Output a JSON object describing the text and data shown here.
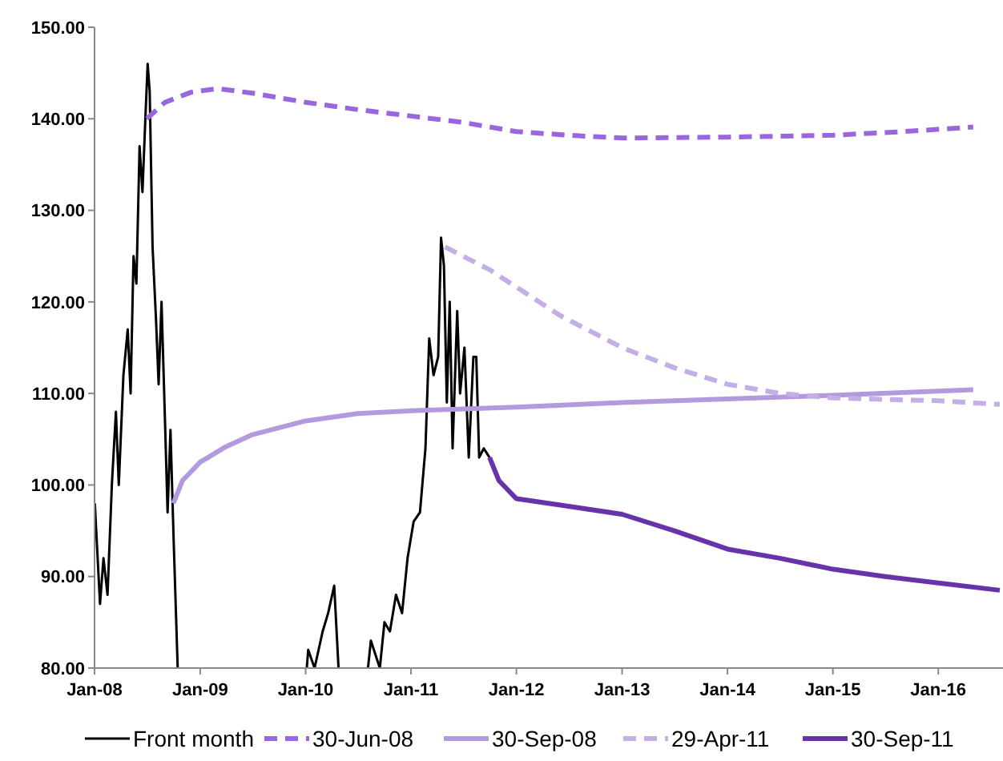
{
  "chart_data": {
    "type": "line",
    "xlim": [
      "2008-01-01",
      "2016-08-01"
    ],
    "ylim": [
      80,
      150
    ],
    "xticks": [
      {
        "value": "2008-01-01",
        "label": "Jan-08"
      },
      {
        "value": "2009-01-01",
        "label": "Jan-09"
      },
      {
        "value": "2010-01-01",
        "label": "Jan-10"
      },
      {
        "value": "2011-01-01",
        "label": "Jan-11"
      },
      {
        "value": "2012-01-01",
        "label": "Jan-12"
      },
      {
        "value": "2013-01-01",
        "label": "Jan-13"
      },
      {
        "value": "2014-01-01",
        "label": "Jan-14"
      },
      {
        "value": "2015-01-01",
        "label": "Jan-15"
      },
      {
        "value": "2016-01-01",
        "label": "Jan-16"
      }
    ],
    "yticks": [
      {
        "value": 80,
        "label": "80.00"
      },
      {
        "value": 90,
        "label": "90.00"
      },
      {
        "value": 100,
        "label": "100.00"
      },
      {
        "value": 110,
        "label": "110.00"
      },
      {
        "value": 120,
        "label": "120.00"
      },
      {
        "value": 130,
        "label": "130.00"
      },
      {
        "value": 140,
        "label": "140.00"
      },
      {
        "value": 150,
        "label": "150.00"
      }
    ],
    "grid": false,
    "legend": "bottom",
    "marker": "none",
    "series": [
      {
        "name": "Front month",
        "color": "#000000",
        "line_style": "solid",
        "x": [
          "2008-01-02",
          "2008-01-20",
          "2008-02-01",
          "2008-02-15",
          "2008-03-01",
          "2008-03-15",
          "2008-03-25",
          "2008-04-10",
          "2008-04-25",
          "2008-05-05",
          "2008-05-15",
          "2008-05-25",
          "2008-06-05",
          "2008-06-15",
          "2008-06-25",
          "2008-07-03",
          "2008-07-10",
          "2008-07-20",
          "2008-08-01",
          "2008-08-10",
          "2008-08-20",
          "2008-09-01",
          "2008-09-10",
          "2008-09-20",
          "2008-10-01",
          "2008-10-15",
          "2009-06-01",
          "2010-01-05",
          "2010-01-10",
          "2010-02-01",
          "2010-03-01",
          "2010-03-20",
          "2010-04-10",
          "2010-04-25",
          "2010-05-10",
          "2010-06-01",
          "2010-07-01",
          "2010-08-05",
          "2010-08-15",
          "2010-09-15",
          "2010-10-01",
          "2010-10-20",
          "2010-11-10",
          "2010-12-01",
          "2010-12-20",
          "2011-01-10",
          "2011-02-01",
          "2011-02-20",
          "2011-03-05",
          "2011-03-20",
          "2011-04-05",
          "2011-04-15",
          "2011-04-25",
          "2011-05-05",
          "2011-05-15",
          "2011-05-25",
          "2011-06-10",
          "2011-06-20",
          "2011-07-05",
          "2011-07-20",
          "2011-08-05",
          "2011-08-15",
          "2011-08-25",
          "2011-09-10",
          "2011-09-30"
        ],
        "values": [
          98,
          87,
          92,
          88,
          100,
          108,
          100,
          112,
          117,
          110,
          125,
          122,
          137,
          132,
          140,
          146,
          143,
          126,
          118,
          111,
          120,
          107,
          97,
          106,
          94,
          80,
          null,
          80,
          82,
          80,
          84,
          86,
          89,
          80,
          null,
          null,
          null,
          80,
          83,
          80,
          85,
          84,
          88,
          86,
          92,
          96,
          97,
          104,
          116,
          112,
          114,
          127,
          124,
          109,
          120,
          104,
          119,
          110,
          115,
          103,
          114,
          114,
          103,
          104,
          103
        ]
      },
      {
        "name": "30-Jun-08",
        "color": "#9966dd",
        "line_style": "dashed",
        "x": [
          "2008-06-30",
          "2008-09-01",
          "2008-12-01",
          "2009-03-01",
          "2009-07-01",
          "2010-01-01",
          "2010-07-01",
          "2011-01-01",
          "2011-07-01",
          "2012-01-01",
          "2012-07-01",
          "2013-01-01",
          "2014-01-01",
          "2015-01-01",
          "2015-09-01",
          "2016-05-01"
        ],
        "values": [
          140,
          141.8,
          142.9,
          143.3,
          142.8,
          141.8,
          141,
          140.3,
          139.6,
          138.6,
          138.2,
          137.9,
          138,
          138.2,
          138.6,
          139.1
        ]
      },
      {
        "name": "30-Sep-08",
        "color": "#b399dd",
        "line_style": "solid",
        "x": [
          "2008-09-30",
          "2008-11-01",
          "2009-01-01",
          "2009-04-01",
          "2009-07-01",
          "2010-01-01",
          "2010-07-01",
          "2011-01-01",
          "2012-01-01",
          "2013-01-01",
          "2014-01-01",
          "2015-01-01",
          "2016-05-01"
        ],
        "values": [
          98,
          100.5,
          102.5,
          104.2,
          105.5,
          107,
          107.8,
          108.1,
          108.5,
          109,
          109.4,
          109.8,
          110.4
        ]
      },
      {
        "name": "29-Apr-11",
        "color": "#c4aee6",
        "line_style": "dashed",
        "x": [
          "2011-04-29",
          "2011-10-01",
          "2012-06-01",
          "2013-01-01",
          "2013-07-01",
          "2014-01-01",
          "2014-07-01",
          "2015-01-01",
          "2016-01-01",
          "2016-08-01"
        ],
        "values": [
          126,
          123.5,
          118.5,
          115,
          112.8,
          111,
          110,
          109.5,
          109.2,
          108.8
        ]
      },
      {
        "name": "30-Sep-11",
        "color": "#6633aa",
        "line_style": "solid",
        "x": [
          "2011-09-30",
          "2011-11-01",
          "2012-01-01",
          "2012-06-01",
          "2013-01-01",
          "2013-07-01",
          "2014-01-01",
          "2014-07-01",
          "2015-01-01",
          "2015-07-01",
          "2016-01-01",
          "2016-08-01"
        ],
        "values": [
          103,
          100.5,
          98.5,
          97.8,
          96.8,
          95,
          93,
          92,
          90.8,
          90,
          89.3,
          88.5
        ]
      }
    ]
  }
}
